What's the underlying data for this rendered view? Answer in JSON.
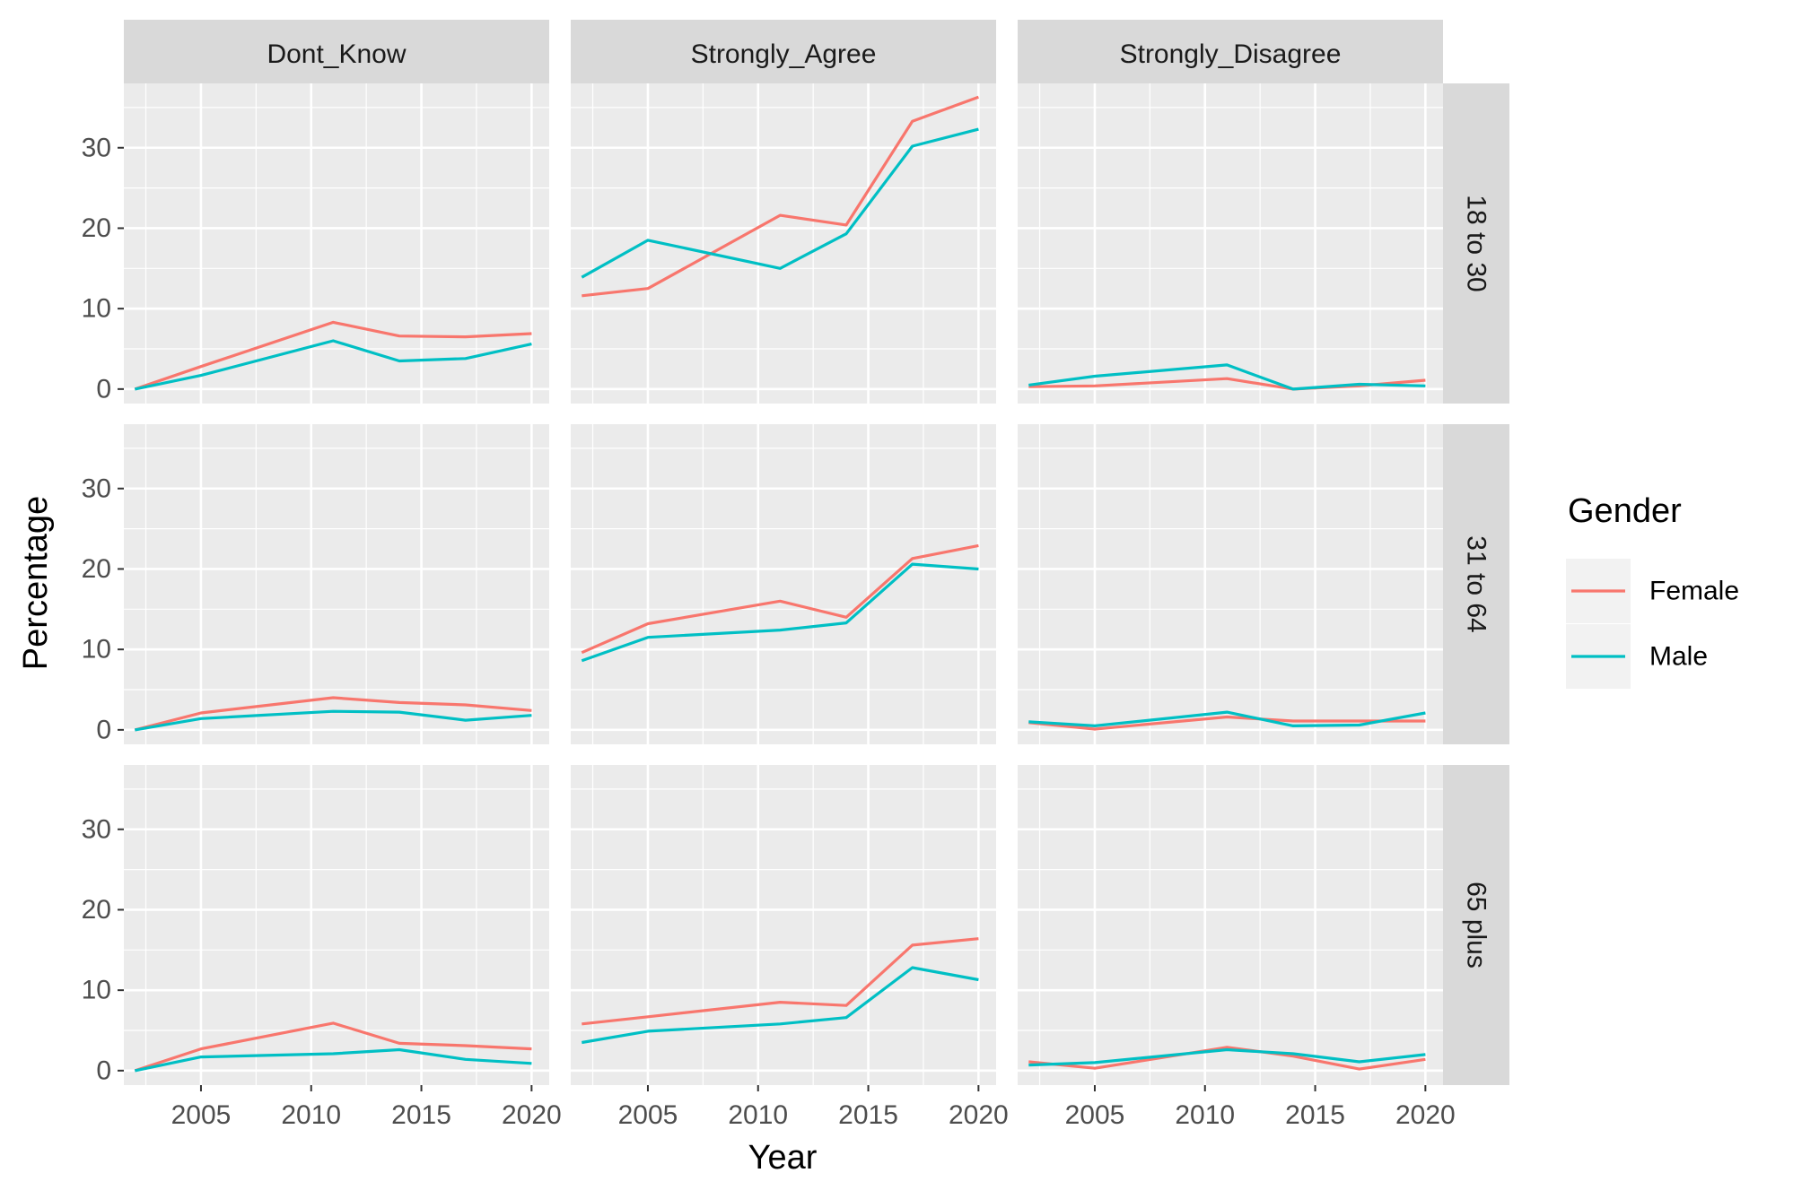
{
  "chart_data": {
    "type": "line",
    "xlabel": "Year",
    "ylabel": "Percentage",
    "xlim": [
      2001.5,
      2020.8
    ],
    "ylim": [
      -1.8,
      38
    ],
    "x_ticks": [
      2005,
      2010,
      2015,
      2020
    ],
    "y_ticks": [
      0,
      10,
      20,
      30
    ],
    "grid": true,
    "legend_position": "right",
    "legend_title": "Gender",
    "columns": [
      "Dont_Know",
      "Strongly_Agree",
      "Strongly_Disagree"
    ],
    "rows": [
      "18 to 30",
      "31 to 64",
      "65 plus"
    ],
    "series_names": [
      "Female",
      "Male"
    ],
    "colors": {
      "Female": "#F8766D",
      "Male": "#00BFC4"
    },
    "years": [
      2002,
      2005,
      2011,
      2014,
      2017,
      2020
    ],
    "panels": [
      {
        "row": "18 to 30",
        "column": "Dont_Know",
        "series": [
          {
            "name": "Female",
            "values": [
              0,
              2.8,
              8.3,
              6.6,
              6.5,
              6.9
            ]
          },
          {
            "name": "Male",
            "values": [
              0,
              1.7,
              6.0,
              3.5,
              3.8,
              5.6
            ]
          }
        ]
      },
      {
        "row": "18 to 30",
        "column": "Strongly_Agree",
        "series": [
          {
            "name": "Female",
            "values": [
              11.6,
              12.5,
              21.6,
              20.4,
              33.3,
              36.3
            ]
          },
          {
            "name": "Male",
            "values": [
              13.9,
              18.5,
              15.0,
              19.3,
              30.2,
              32.3
            ]
          }
        ]
      },
      {
        "row": "18 to 30",
        "column": "Strongly_Disagree",
        "series": [
          {
            "name": "Female",
            "values": [
              0.3,
              0.4,
              1.3,
              0,
              0.4,
              1.1
            ]
          },
          {
            "name": "Male",
            "values": [
              0.5,
              1.6,
              3.0,
              0,
              0.6,
              0.4
            ]
          }
        ]
      },
      {
        "row": "31 to 64",
        "column": "Dont_Know",
        "series": [
          {
            "name": "Female",
            "values": [
              0,
              2.1,
              4.0,
              3.4,
              3.1,
              2.4
            ]
          },
          {
            "name": "Male",
            "values": [
              0,
              1.4,
              2.3,
              2.2,
              1.2,
              1.8
            ]
          }
        ]
      },
      {
        "row": "31 to 64",
        "column": "Strongly_Agree",
        "series": [
          {
            "name": "Female",
            "values": [
              9.6,
              13.2,
              16.0,
              14.0,
              21.3,
              22.9
            ]
          },
          {
            "name": "Male",
            "values": [
              8.6,
              11.5,
              12.4,
              13.3,
              20.6,
              20.0
            ]
          }
        ]
      },
      {
        "row": "31 to 64",
        "column": "Strongly_Disagree",
        "series": [
          {
            "name": "Female",
            "values": [
              0.9,
              0.1,
              1.6,
              1.1,
              1.1,
              1.1
            ]
          },
          {
            "name": "Male",
            "values": [
              1.0,
              0.5,
              2.2,
              0.5,
              0.6,
              2.1
            ]
          }
        ]
      },
      {
        "row": "65 plus",
        "column": "Dont_Know",
        "series": [
          {
            "name": "Female",
            "values": [
              0,
              2.7,
              5.9,
              3.4,
              3.1,
              2.7
            ]
          },
          {
            "name": "Male",
            "values": [
              0,
              1.7,
              2.1,
              2.6,
              1.4,
              0.9
            ]
          }
        ]
      },
      {
        "row": "65 plus",
        "column": "Strongly_Agree",
        "series": [
          {
            "name": "Female",
            "values": [
              5.8,
              6.7,
              8.5,
              8.1,
              15.6,
              16.4
            ]
          },
          {
            "name": "Male",
            "values": [
              3.5,
              4.9,
              5.8,
              6.6,
              12.8,
              11.3
            ]
          }
        ]
      },
      {
        "row": "65 plus",
        "column": "Strongly_Disagree",
        "series": [
          {
            "name": "Female",
            "values": [
              1.1,
              0.3,
              2.9,
              1.8,
              0.2,
              1.4
            ]
          },
          {
            "name": "Male",
            "values": [
              0.7,
              1.0,
              2.6,
              2.1,
              1.1,
              2.0
            ]
          }
        ]
      }
    ]
  }
}
